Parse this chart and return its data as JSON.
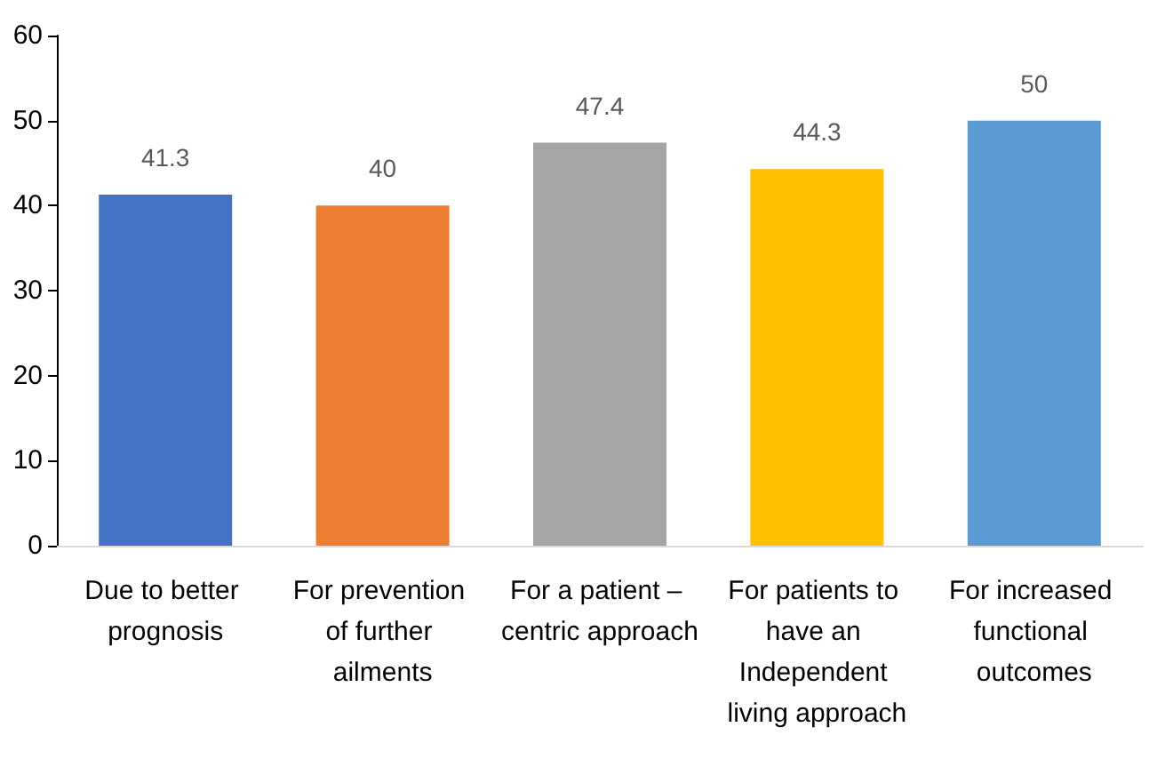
{
  "chart_data": {
    "type": "bar",
    "categories": [
      "Due to better prognosis",
      "For prevention of further ailments",
      "For a patient – centric approach",
      "For patients to have an Independent living approach",
      "For increased functional outcomes"
    ],
    "values": [
      41.3,
      40,
      47.4,
      44.3,
      50
    ],
    "colors": [
      "#4472c4",
      "#ed7d31",
      "#a5a5a5",
      "#ffc000",
      "#5b9bd5"
    ],
    "ylim": [
      0,
      60
    ],
    "yticks": [
      0,
      10,
      20,
      30,
      40,
      50,
      60
    ],
    "grid": false,
    "data_labels": true
  }
}
